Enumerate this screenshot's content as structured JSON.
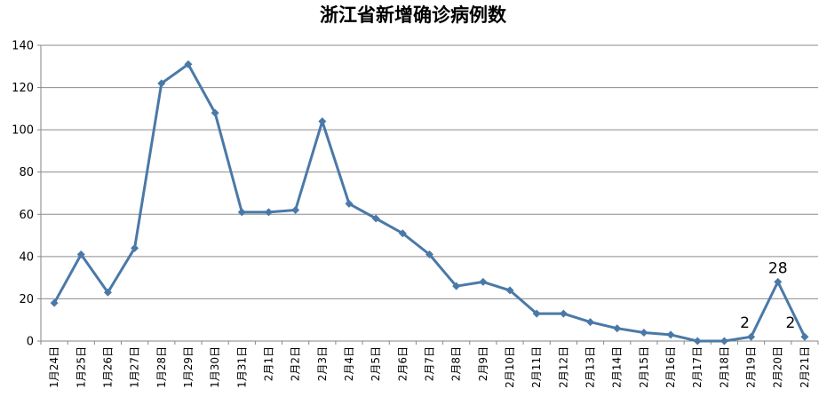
{
  "chart_data": {
    "type": "line",
    "title": "浙江省新增确诊病例数",
    "xlabel": "",
    "ylabel": "",
    "ylim": [
      0,
      140
    ],
    "yticks": [
      0,
      20,
      40,
      60,
      80,
      100,
      120,
      140
    ],
    "grid": true,
    "legend": "none",
    "categories": [
      "1月24日",
      "1月25日",
      "1月26日",
      "1月27日",
      "1月28日",
      "1月29日",
      "1月30日",
      "1月31日",
      "2月1日",
      "2月2日",
      "2月3日",
      "2月4日",
      "2月5日",
      "2月6日",
      "2月7日",
      "2月8日",
      "2月9日",
      "2月10日",
      "2月11日",
      "2月12日",
      "2月13日",
      "2月14日",
      "2月15日",
      "2月16日",
      "2月17日",
      "2月18日",
      "2月19日",
      "2月20日",
      "2月21日"
    ],
    "series": [
      {
        "values": [
          18,
          41,
          23,
          44,
          122,
          131,
          108,
          61,
          61,
          62,
          104,
          65,
          58,
          51,
          41,
          26,
          28,
          24,
          13,
          13,
          9,
          6,
          4,
          3,
          0,
          0,
          2,
          28,
          2
        ]
      }
    ],
    "data_labels": [
      {
        "index": 26,
        "text": "2"
      },
      {
        "index": 27,
        "text": "28"
      },
      {
        "index": 28,
        "text": "2"
      }
    ],
    "colors": {
      "line": "#4a79a8",
      "grid": "#8c8c8c",
      "axis": "#868686"
    }
  }
}
